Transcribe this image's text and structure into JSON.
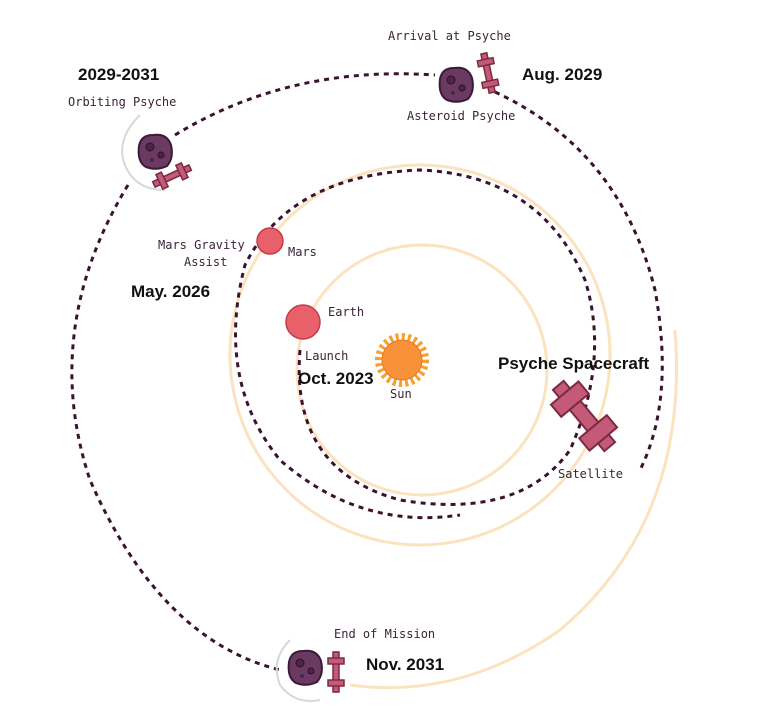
{
  "labels": {
    "arrival": "Arrival at Psyche",
    "arrival_date": "Aug. 2029",
    "asteroid": "Asteroid Psyche",
    "orbiting_dates": "2029-2031",
    "orbiting": "Orbiting Psyche",
    "mars_assist": [
      "Mars Gravity",
      "Assist"
    ],
    "mars": "Mars",
    "mars_date": "May. 2026",
    "earth": "Earth",
    "launch": "Launch",
    "launch_date": "Oct. 2023",
    "sun": "Sun",
    "spacecraft": "Psyche Spacecraft",
    "satellite": "Satellite",
    "end": "End of Mission",
    "end_date": "Nov. 2031"
  }
}
